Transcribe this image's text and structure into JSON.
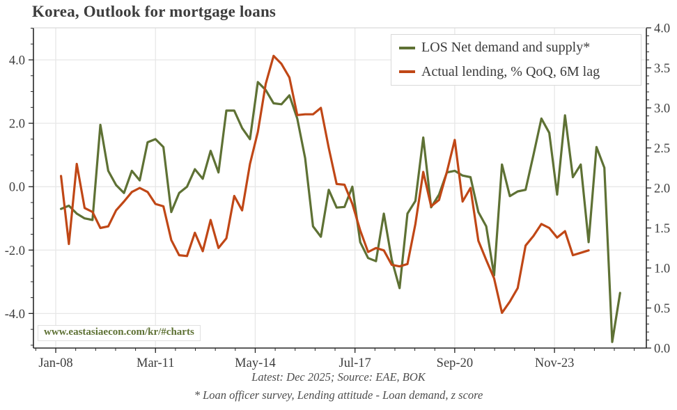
{
  "title": "Korea, Outlook for mortgage loans",
  "watermark": "www.eastasiaecon.com/kr/#charts",
  "footer": {
    "line1": "Latest: Dec 2025; Source: EAE, BOK",
    "line2": "* Loan officer survey, Lending attitude - Loan demand, z score"
  },
  "colors": {
    "los_green": "#5e7134",
    "lending_orange": "#c04716",
    "grid": "#e7e7e7",
    "spine": "#262626",
    "top_spine": "#d9d9d9",
    "tick_text": "#3d3d3d"
  },
  "legend": [
    {
      "label": "LOS Net demand and supply*",
      "color": "#5e7134"
    },
    {
      "label": "Actual lending, % QoQ, 6M lag",
      "color": "#c04716"
    }
  ],
  "chart_data": {
    "type": "line",
    "title": "Korea, Outlook for mortgage loans",
    "grid": true,
    "legend_position": "upper right",
    "x_axis": {
      "unit": "months since Jan-2008",
      "range": [
        -8.5,
        225
      ],
      "ticks": [
        {
          "month": 0,
          "label": "Jan-08"
        },
        {
          "month": 38,
          "label": "Mar-11"
        },
        {
          "month": 76,
          "label": "May-14"
        },
        {
          "month": 114,
          "label": "Jul-17"
        },
        {
          "month": 152,
          "label": "Sep-20"
        },
        {
          "month": 190,
          "label": "Nov-23"
        }
      ],
      "minor_step_months": 7.6
    },
    "y_axis_left": {
      "range": [
        -5.09,
        5.01
      ],
      "major_ticks": [
        {
          "v": 4,
          "label": "4.0"
        },
        {
          "v": 2,
          "label": "2.0"
        },
        {
          "v": 0,
          "label": "0.0"
        },
        {
          "v": -2,
          "label": "-2.0"
        },
        {
          "v": -4,
          "label": "-4.0"
        }
      ],
      "minor_step": 0.5
    },
    "y_axis_right": {
      "range": [
        0,
        4
      ],
      "major_ticks": [
        {
          "v": 4.0,
          "label": "4.0"
        },
        {
          "v": 3.5,
          "label": "3.5"
        },
        {
          "v": 3.0,
          "label": "3.0"
        },
        {
          "v": 2.5,
          "label": "2.5"
        },
        {
          "v": 2.0,
          "label": "2.0"
        },
        {
          "v": 1.5,
          "label": "1.5"
        },
        {
          "v": 1.0,
          "label": "1.0"
        },
        {
          "v": 0.5,
          "label": "0.5"
        },
        {
          "v": 0.0,
          "label": "0.0"
        }
      ],
      "minor_step": 0.1
    },
    "series": [
      {
        "id": "los",
        "name": "LOS Net demand and supply*",
        "axis": "left",
        "color": "#5e7134",
        "frequency": "quarterly",
        "start": "2008-Q1 (Mar-08)",
        "start_month": 2,
        "step_months": 3,
        "values": [
          -0.7,
          -0.6,
          -0.85,
          -1.0,
          -1.05,
          1.95,
          0.5,
          0.05,
          -0.2,
          0.5,
          0.2,
          1.4,
          1.5,
          1.25,
          -0.8,
          -0.2,
          0.0,
          0.55,
          0.25,
          1.13,
          0.45,
          2.4,
          2.4,
          1.85,
          1.5,
          3.3,
          3.05,
          2.63,
          2.6,
          2.88,
          2.15,
          0.9,
          -1.25,
          -1.58,
          -0.1,
          -0.66,
          -0.64,
          0.0,
          -1.75,
          -2.25,
          -2.35,
          -0.85,
          -2.3,
          -3.2,
          -0.85,
          -0.45,
          1.55,
          -0.65,
          -0.25,
          0.45,
          0.5,
          0.35,
          0.3,
          -0.8,
          -1.25,
          -2.8,
          0.7,
          -0.3,
          -0.15,
          -0.1,
          1.0,
          2.15,
          1.7,
          -0.25,
          2.25,
          0.3,
          0.7,
          -1.75,
          1.25,
          0.6,
          -4.9,
          -3.35
        ]
      },
      {
        "id": "lending",
        "name": "Actual lending, % QoQ, 6M lag",
        "axis": "right",
        "color": "#c04716",
        "frequency": "quarterly",
        "start": "2008-Q1 (Mar-08)",
        "start_month": 2,
        "step_months": 3,
        "values": [
          2.15,
          1.3,
          2.3,
          1.75,
          1.7,
          1.5,
          1.52,
          1.72,
          1.83,
          1.95,
          2.0,
          1.95,
          1.8,
          1.77,
          1.35,
          1.16,
          1.15,
          1.44,
          1.21,
          1.6,
          1.25,
          1.37,
          1.9,
          1.72,
          2.3,
          2.7,
          3.3,
          3.65,
          3.55,
          3.38,
          2.91,
          2.92,
          2.92,
          3.0,
          2.5,
          2.05,
          2.04,
          1.8,
          1.47,
          1.2,
          1.25,
          1.22,
          1.04,
          1.02,
          1.05,
          1.55,
          2.2,
          1.77,
          1.85,
          2.2,
          2.6,
          1.83,
          2.0,
          1.34,
          1.1,
          0.87,
          0.44,
          0.58,
          0.75,
          1.28,
          1.4,
          1.55,
          1.5,
          1.38,
          1.46,
          1.16,
          1.19,
          1.22
        ]
      }
    ]
  }
}
